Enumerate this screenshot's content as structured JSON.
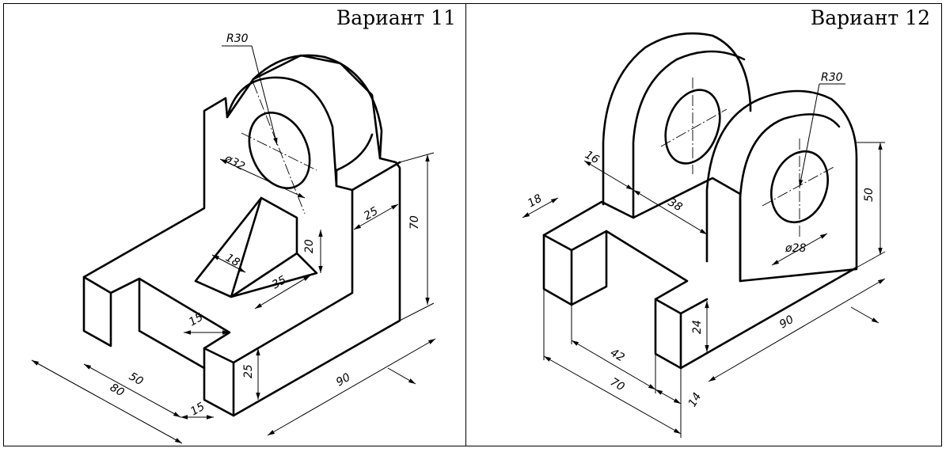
{
  "variants": [
    {
      "title": "Вариант 11",
      "dims": {
        "r30": "R30",
        "d32": "ø32",
        "w25": "25",
        "h70": "70",
        "t18": "18",
        "t20": "20",
        "t35": "35",
        "s15": "15",
        "s50": "50",
        "s80": "80",
        "s15b": "15",
        "h25": "25",
        "l90": "90"
      }
    },
    {
      "title": "Вариант 12",
      "dims": {
        "r30": "R30",
        "w16": "16",
        "w18": "18",
        "w38": "38",
        "h50": "50",
        "d28": "ø28",
        "h24": "24",
        "l90": "90",
        "s42": "42",
        "s70": "70",
        "s14": "14"
      }
    }
  ]
}
